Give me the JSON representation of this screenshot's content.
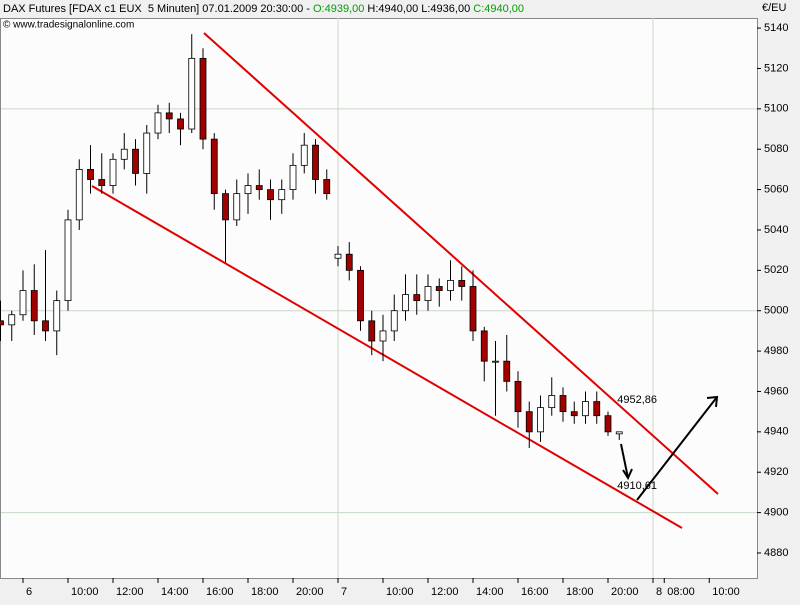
{
  "chart_data": {
    "type": "candlestick",
    "header": [
      {
        "text": "DAX Futures [FDAX c1 EUX  5 Minuten] 07.01.2009 20:30:00 - ",
        "color": "#000000"
      },
      {
        "text": "O:4939,00",
        "color": "#00a000"
      },
      {
        "text": " H:4940,00 L:4936,00 ",
        "color": "#000000"
      },
      {
        "text": "C:4940,00",
        "color": "#00a000"
      }
    ],
    "source": "© www.tradesignalonline.com",
    "y_unit": "€/EU",
    "categories": [
      null,
      null,
      "6",
      null,
      null,
      null,
      "10:00",
      null,
      null,
      null,
      "12:00",
      null,
      null,
      null,
      "14:00",
      null,
      null,
      null,
      "16:00",
      null,
      null,
      null,
      "18:00",
      null,
      null,
      null,
      "20:00",
      null,
      null,
      null,
      "7",
      null,
      null,
      null,
      "10:00",
      null,
      null,
      null,
      "12:00",
      null,
      null,
      null,
      "14:00",
      null,
      null,
      null,
      "16:00",
      null,
      null,
      null,
      "18:00",
      null,
      null,
      null,
      "20:00",
      null,
      null,
      null,
      "8",
      "08:00",
      null,
      null,
      null,
      "10:00"
    ],
    "open": [
      4995,
      4993,
      4998,
      5010,
      4995,
      4990,
      5005,
      5045,
      5070,
      5065,
      5062,
      5075,
      5080,
      5068,
      5088,
      5098,
      5095,
      5090,
      5125,
      5085,
      5058,
      5045,
      5058,
      5062,
      5060,
      5055,
      5060,
      5072,
      5082,
      5065,
      5026,
      5028,
      5020,
      4995,
      4985,
      4990,
      5000,
      5008,
      5005,
      5012,
      5010,
      5015,
      5012,
      4990,
      4975,
      4975,
      4965,
      4950,
      4940,
      4952,
      4958,
      4950,
      4948,
      4955,
      4948,
      4939,
      null,
      null,
      null,
      null,
      null,
      null,
      null,
      null
    ],
    "high": [
      5005,
      5000,
      5020,
      5023,
      5030,
      5010,
      5050,
      5075,
      5082,
      5078,
      5078,
      5088,
      5085,
      5092,
      5102,
      5103,
      5098,
      5137,
      5130,
      5088,
      5060,
      5065,
      5068,
      5070,
      5065,
      5065,
      5078,
      5088,
      5085,
      5070,
      5032,
      5034,
      5022,
      5000,
      4998,
      5008,
      5018,
      5018,
      5018,
      5016,
      5025,
      5022,
      5020,
      4992,
      4985,
      4988,
      4970,
      4955,
      4958,
      4967,
      4962,
      4955,
      4960,
      4960,
      4950,
      4940,
      null,
      null,
      null,
      null,
      null,
      null,
      null,
      null
    ],
    "low": [
      4985,
      4985,
      4995,
      4988,
      4985,
      4978,
      5000,
      5040,
      5058,
      5058,
      5058,
      5070,
      5062,
      5058,
      5085,
      5088,
      5082,
      5088,
      5080,
      5050,
      5024,
      5042,
      5048,
      5055,
      5045,
      5048,
      5055,
      5068,
      5058,
      5055,
      5022,
      5015,
      4990,
      4978,
      4975,
      4985,
      4995,
      4998,
      5000,
      5002,
      5005,
      5005,
      4985,
      4965,
      4948,
      4960,
      4942,
      4932,
      4935,
      4948,
      4945,
      4944,
      4944,
      4944,
      4938,
      4936,
      null,
      null,
      null,
      null,
      null,
      null,
      null,
      null
    ],
    "close": [
      4993,
      4998,
      5010,
      4995,
      4990,
      5005,
      5045,
      5070,
      5065,
      5062,
      5075,
      5080,
      5068,
      5088,
      5098,
      5095,
      5090,
      5125,
      5085,
      5058,
      5045,
      5058,
      5062,
      5060,
      5055,
      5060,
      5072,
      5082,
      5065,
      5058,
      5028,
      5020,
      4995,
      4985,
      4990,
      5000,
      5008,
      5005,
      5012,
      5010,
      5015,
      5012,
      4990,
      4975,
      4975,
      4965,
      4950,
      4940,
      4952,
      4958,
      4950,
      4948,
      4955,
      4948,
      4940,
      4940,
      null,
      null,
      null,
      null,
      null,
      null,
      null,
      null
    ],
    "up_color": "#ffffff",
    "down_color": "#a00000",
    "annotations": [
      {
        "text": "4952,86",
        "color": "#cc0000",
        "category": 55
      },
      {
        "text": "4910,61",
        "color": "#cc0000",
        "category": 55
      }
    ],
    "ylim": [
      4867.6,
      5145
    ],
    "yticks": [
      4880,
      4900,
      4920,
      4940,
      4960,
      4980,
      5000,
      5020,
      5040,
      5060,
      5080,
      5100,
      5120,
      5140
    ],
    "grid": true
  }
}
